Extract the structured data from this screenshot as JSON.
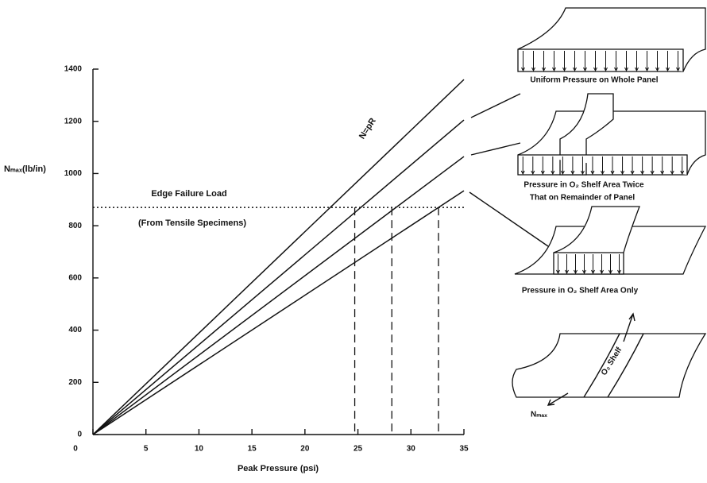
{
  "chart_data": {
    "type": "line",
    "x_label": "Peak Pressure (psi)",
    "y_label": "Nₘₐₓ(lb/in)",
    "x": [
      0,
      35
    ],
    "series": [
      {
        "color": "#111111",
        "values": [
          0,
          1360
        ]
      },
      {
        "color": "#111111",
        "values": [
          0,
          1205
        ]
      },
      {
        "color": "#111111",
        "values": [
          0,
          1065
        ]
      },
      {
        "color": "#111111",
        "values": [
          0,
          934
        ]
      }
    ],
    "annotations": {
      "line_label": "N=pR",
      "threshold_label": "Edge Failure Load",
      "threshold_note": "(From Tensile Specimens)"
    },
    "threshold": 870,
    "failure_pressures": [
      24.7,
      28.2,
      32.6
    ],
    "xlim": [
      0,
      35
    ],
    "xticks": [
      0,
      5,
      10,
      15,
      20,
      25,
      30,
      35
    ],
    "ylim": [
      0,
      1400
    ],
    "yticks": [
      0,
      200,
      400,
      600,
      800,
      1000,
      1200,
      1400
    ]
  },
  "diagrams": [
    {
      "caption": "Uniform Pressure on Whole Panel"
    },
    {
      "caption": "Pressure in O₂ Shelf Area Twice",
      "caption_2": "That on Remainder of Panel"
    },
    {
      "caption": "Pressure in O₂ Shelf Area Only"
    },
    {
      "band_label": "O₂ Shelf",
      "load_label": "Nₘₐₓ"
    }
  ]
}
